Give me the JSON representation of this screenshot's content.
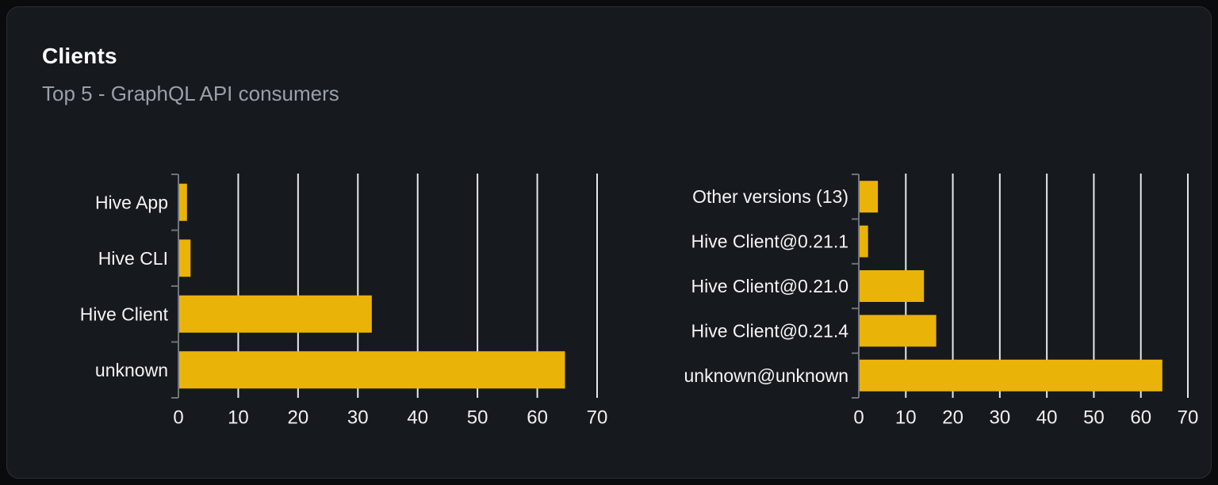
{
  "card": {
    "title": "Clients",
    "subtitle": "Top 5 - GraphQL API consumers"
  },
  "colors": {
    "page_bg": "#0a0b0d",
    "card_bg": "#16191e",
    "card_border": "#2a2e36",
    "title": "#ffffff",
    "subtitle": "#9aa0a8",
    "bar": "#eab308",
    "gridline": "#e6e8ec",
    "axis": "#6e737b",
    "category_label": "#f3f4f6",
    "tick_label": "#eef0f2"
  },
  "chart_data": [
    {
      "type": "bar",
      "orientation": "horizontal",
      "title": "",
      "xlabel": "",
      "ylabel": "",
      "categories": [
        "Hive App",
        "Hive CLI",
        "Hive Client",
        "unknown"
      ],
      "values": [
        1.3,
        1.9,
        32.2,
        64.5
      ],
      "xlim": [
        0,
        70
      ],
      "xticks": [
        0,
        10,
        20,
        30,
        40,
        50,
        60,
        70
      ],
      "grid": true,
      "legend": false
    },
    {
      "type": "bar",
      "orientation": "horizontal",
      "title": "",
      "xlabel": "",
      "ylabel": "",
      "categories": [
        "Other versions (13)",
        "Hive Client@0.21.1",
        "Hive Client@0.21.0",
        "Hive Client@0.21.4",
        "unknown@unknown"
      ],
      "values": [
        3.9,
        1.8,
        13.7,
        16.3,
        64.4
      ],
      "xlim": [
        0,
        70
      ],
      "xticks": [
        0,
        10,
        20,
        30,
        40,
        50,
        60,
        70
      ],
      "grid": true,
      "legend": false
    }
  ]
}
